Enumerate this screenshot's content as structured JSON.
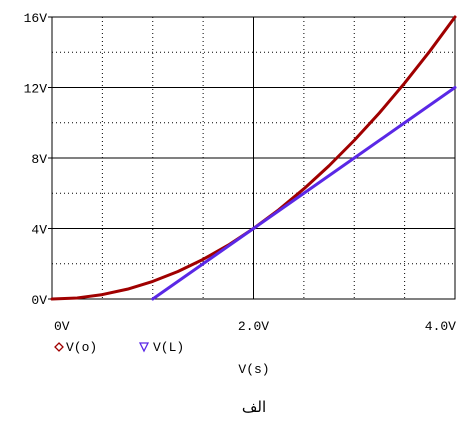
{
  "chart_data": {
    "type": "line",
    "xlabel": "V(s)",
    "ylabel": "",
    "xlim": [
      0,
      4
    ],
    "ylim": [
      0,
      16
    ],
    "x_ticks": [
      "0V",
      "2.0V",
      "4.0V"
    ],
    "y_ticks": [
      "0V",
      "4V",
      "8V",
      "12V",
      "16V"
    ],
    "grid": true,
    "legend_position": "bottom-left",
    "series": [
      {
        "name": "V(o)",
        "marker": "diamond",
        "color": "#a00000",
        "x": [
          0,
          0.25,
          0.5,
          0.75,
          1.0,
          1.25,
          1.5,
          1.75,
          2.0,
          2.25,
          2.5,
          2.75,
          3.0,
          3.25,
          3.5,
          3.75,
          4.0
        ],
        "y": [
          0,
          0.06,
          0.25,
          0.56,
          1.0,
          1.56,
          2.25,
          3.06,
          4.0,
          5.06,
          6.25,
          7.56,
          9.0,
          10.56,
          12.25,
          14.06,
          16.0
        ]
      },
      {
        "name": "V(L)",
        "marker": "triangle-down",
        "color": "#5a28e6",
        "x": [
          1.0,
          1.5,
          2.0,
          2.5,
          3.0,
          3.5,
          4.0
        ],
        "y": [
          0,
          2.0,
          4.0,
          6.0,
          8.0,
          10.0,
          12.0
        ]
      }
    ]
  },
  "caption": "الف"
}
